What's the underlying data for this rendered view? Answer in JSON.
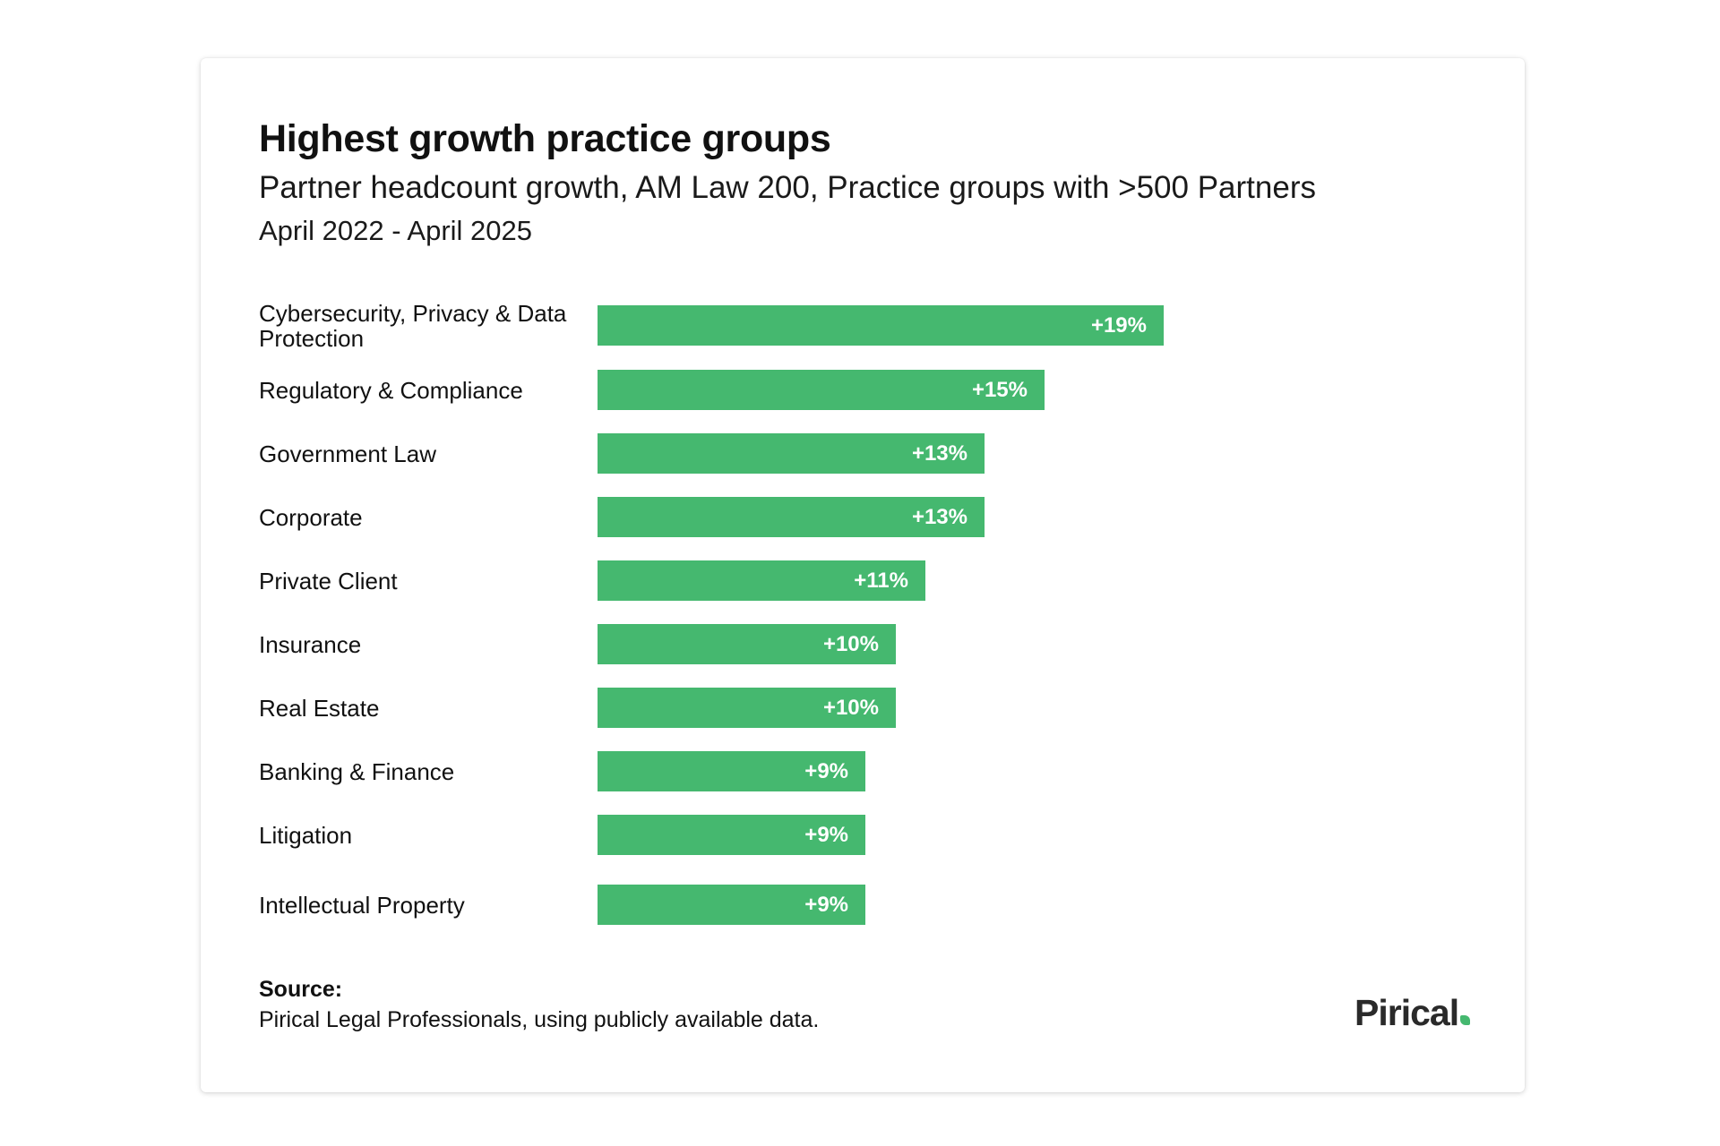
{
  "header": {
    "title": "Highest growth practice groups",
    "subtitle": "Partner headcount growth, AM Law 200, Practice groups with >500 Partners",
    "date_range": "April 2022 - April 2025"
  },
  "chart_data": {
    "type": "bar",
    "orientation": "horizontal",
    "title": "Highest growth practice groups",
    "subtitle": "Partner headcount growth, AM Law 200, Practice groups with >500 Partners",
    "categories": [
      "Cybersecurity, Privacy & Data Protection",
      "Regulatory & Compliance",
      "Government Law",
      "Corporate",
      "Private Client",
      "Insurance",
      "Real Estate",
      "Banking & Finance",
      "Litigation",
      "Intellectual Property"
    ],
    "values": [
      19,
      15,
      13,
      13,
      11,
      10,
      10,
      9,
      9,
      9
    ],
    "value_labels": [
      "+19%",
      "+15%",
      "+13%",
      "+13%",
      "+11%",
      "+10%",
      "+10%",
      "+9%",
      "+9%",
      "+9%"
    ],
    "unit": "%",
    "xlim": [
      0,
      19
    ],
    "grid": false,
    "bar_color": "#45b86f",
    "label_color": "#ffffff"
  },
  "footer": {
    "source_heading": "Source:",
    "source_text": "Pirical Legal Professionals, using publicly available data.",
    "logo_text": "Pirical"
  },
  "colors": {
    "accent": "#45b86f",
    "text": "#111111",
    "background": "#ffffff"
  }
}
